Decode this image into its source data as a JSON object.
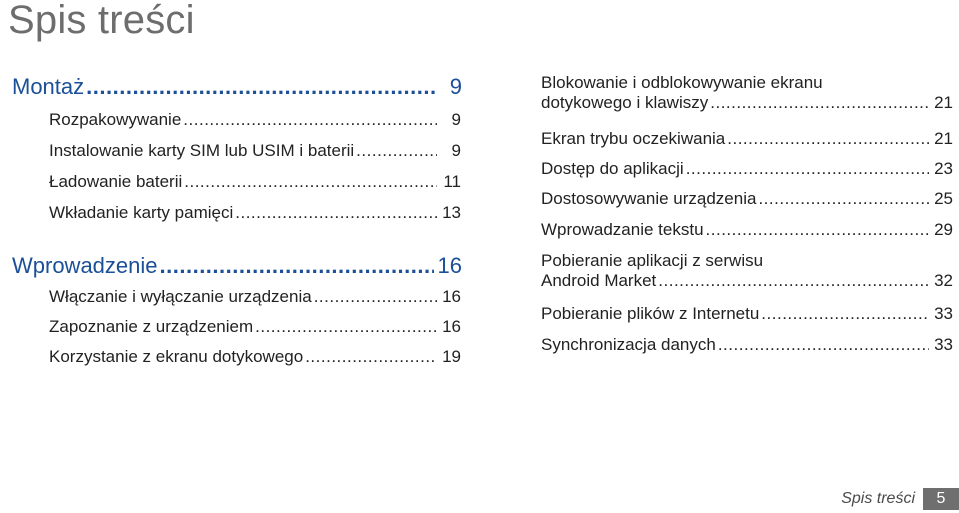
{
  "page_title": "Spis treści",
  "left": [
    {
      "kind": "section",
      "title": "Montaż",
      "page": "9"
    },
    {
      "kind": "sub",
      "title": "Rozpakowywanie",
      "page": "9"
    },
    {
      "kind": "sub",
      "title": "Instalowanie karty SIM lub USIM i baterii",
      "page": "9"
    },
    {
      "kind": "sub",
      "title": "Ładowanie baterii",
      "page": "11"
    },
    {
      "kind": "sub",
      "title": "Wkładanie karty pamięci",
      "page": "13"
    },
    {
      "kind": "section",
      "title": "Wprowadzenie",
      "page": "16"
    },
    {
      "kind": "sub",
      "title": "Włączanie i wyłączanie urządzenia",
      "page": "16"
    },
    {
      "kind": "sub",
      "title": "Zapoznanie z urządzeniem",
      "page": "16"
    },
    {
      "kind": "sub",
      "title": "Korzystanie z ekranu dotykowego",
      "page": "19"
    }
  ],
  "right": [
    {
      "title_line1": "Blokowanie i odblokowywanie ekranu",
      "title": "dotykowego i klawiszy",
      "page": "21"
    },
    {
      "title_line1": "",
      "title": "Ekran trybu oczekiwania",
      "page": "21"
    },
    {
      "title_line1": "",
      "title": "Dostęp do aplikacji",
      "page": "23"
    },
    {
      "title_line1": "",
      "title": "Dostosowywanie urządzenia",
      "page": "25"
    },
    {
      "title_line1": "",
      "title": "Wprowadzanie tekstu",
      "page": "29"
    },
    {
      "title_line1": "Pobieranie aplikacji z serwisu",
      "title": "Android Market",
      "page": "32"
    },
    {
      "title_line1": "",
      "title": "Pobieranie plików z Internetu",
      "page": "33"
    },
    {
      "title_line1": "",
      "title": "Synchronizacja danych",
      "page": "33"
    }
  ],
  "footer": {
    "label": "Spis treści",
    "page": "5"
  }
}
